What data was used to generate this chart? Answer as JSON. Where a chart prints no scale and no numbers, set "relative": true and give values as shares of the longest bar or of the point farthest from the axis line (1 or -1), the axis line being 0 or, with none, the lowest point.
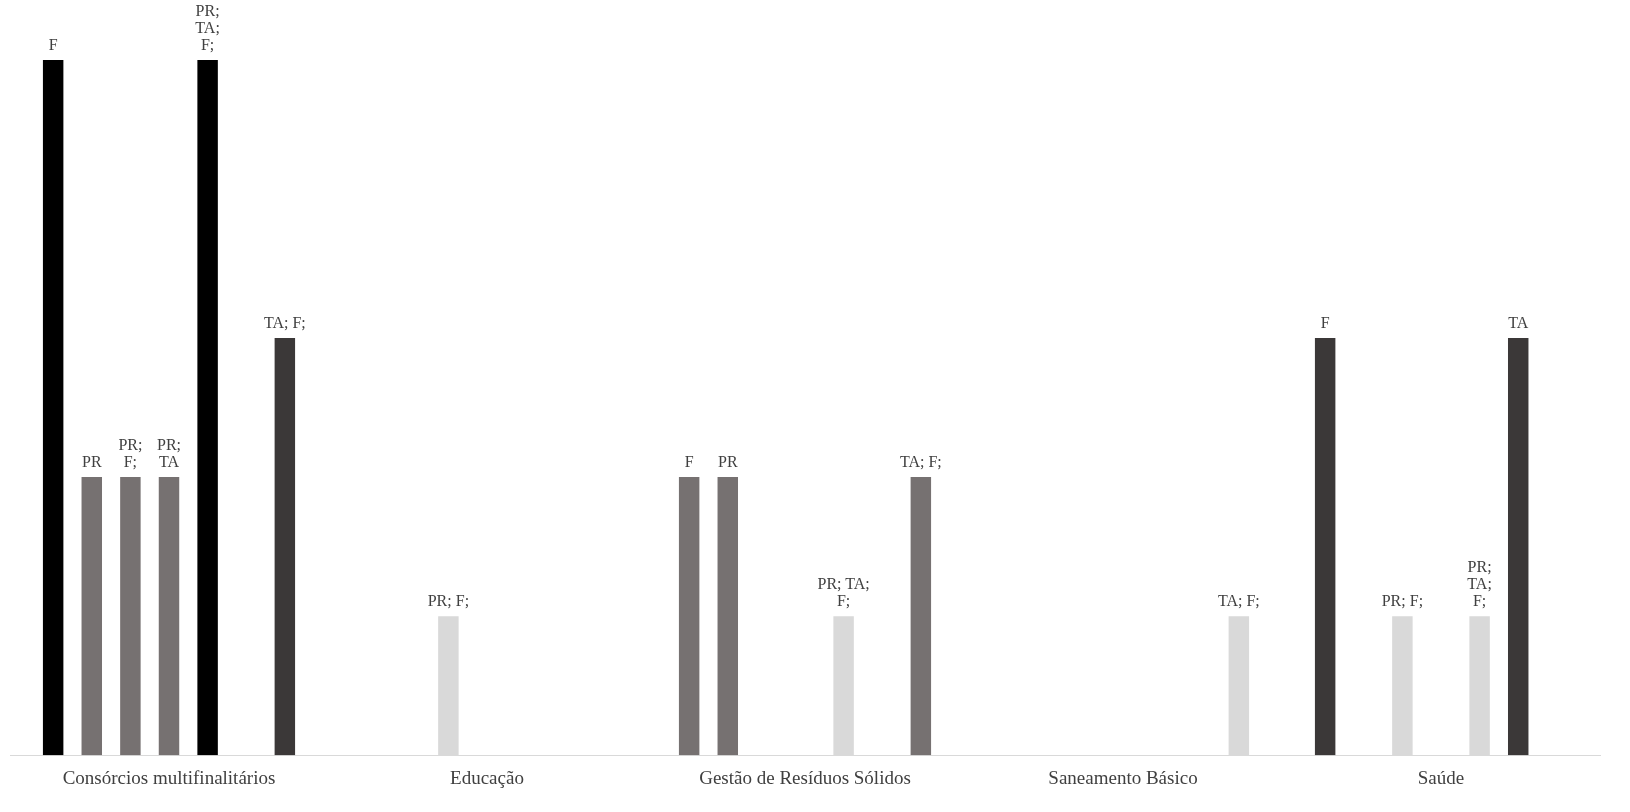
{
  "chart_data": {
    "type": "bar",
    "relative": true,
    "legend": false,
    "grid": false,
    "categories": [
      "Consórcios multifinalitários",
      "Educação",
      "Gestão de Resíduos Sólidos",
      "Saneamento Básico",
      "Saúde"
    ],
    "series": [
      {
        "name": "F",
        "colors": [
          "#000000",
          null,
          "#767171",
          null,
          "#3b3838"
        ],
        "values": [
          1,
          null,
          0.4,
          null,
          0.6
        ]
      },
      {
        "name": "PR",
        "colors": [
          "#767171",
          null,
          "#767171",
          null,
          null
        ],
        "values": [
          0.4,
          null,
          0.4,
          null,
          null
        ]
      },
      {
        "name": "PR; F;",
        "colors": [
          "#767171",
          "#d9d9d9",
          null,
          null,
          "#d9d9d9"
        ],
        "values": [
          0.4,
          0.2,
          null,
          null,
          0.2
        ]
      },
      {
        "name": "PR; TA",
        "colors": [
          "#767171",
          null,
          null,
          null,
          null
        ],
        "values": [
          0.4,
          null,
          null,
          null,
          null
        ]
      },
      {
        "name": "PR; TA; F;",
        "colors": [
          "#000000",
          null,
          "#d9d9d9",
          null,
          "#d9d9d9"
        ],
        "values": [
          1,
          null,
          0.2,
          null,
          0.2
        ]
      },
      {
        "name": "TA",
        "colors": [
          null,
          null,
          null,
          null,
          "#3b3838"
        ],
        "values": [
          null,
          null,
          null,
          null,
          0.6
        ]
      },
      {
        "name": "TA; F;",
        "colors": [
          "#3b3838",
          null,
          "#767171",
          "#d9d9d9",
          null
        ],
        "values": [
          0.6,
          null,
          0.4,
          0.2,
          null
        ]
      }
    ]
  }
}
